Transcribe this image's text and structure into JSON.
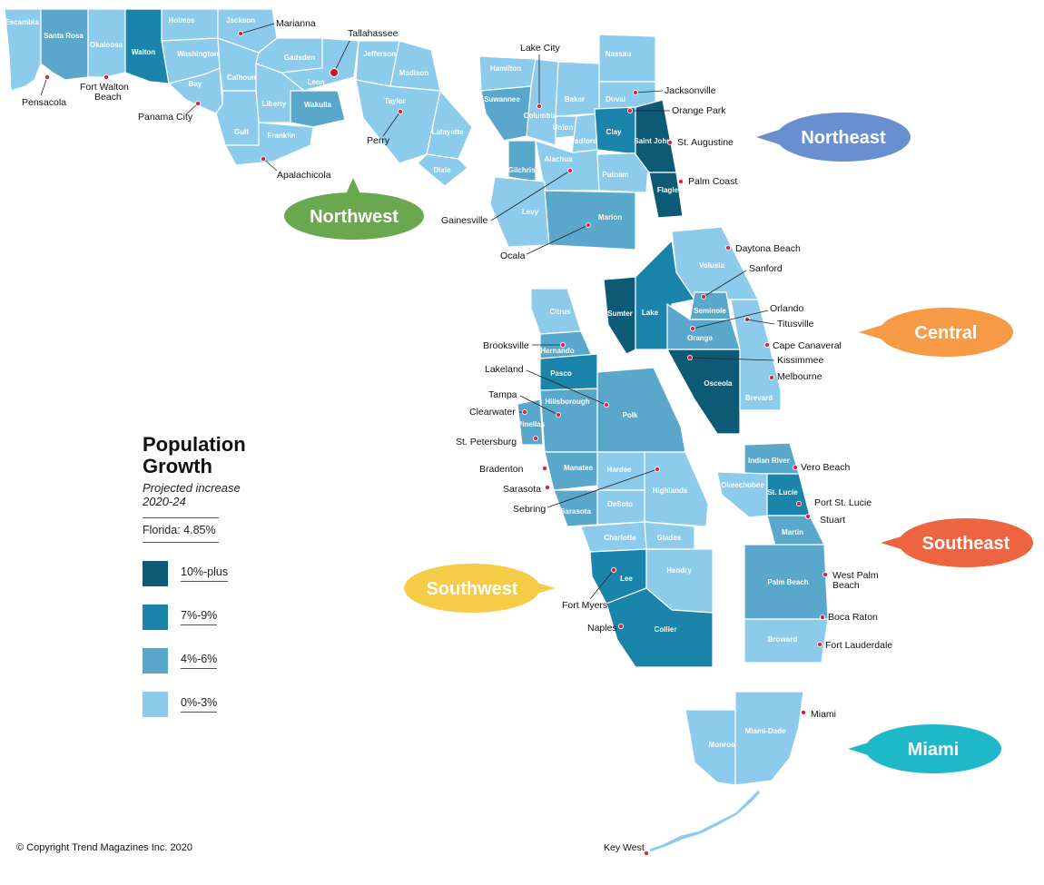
{
  "legend": {
    "title_line1": "Population",
    "title_line2": "Growth",
    "subtitle": "Projected increase 2020-24",
    "total": "Florida: 4.85%",
    "classes": [
      {
        "label": "10%-plus",
        "color": "#0d5a76"
      },
      {
        "label": "7%-9%",
        "color": "#1a84ab"
      },
      {
        "label": "4%-6%",
        "color": "#5aa7cc"
      },
      {
        "label": "0%-3%",
        "color": "#8ccbec"
      }
    ]
  },
  "regions": {
    "northwest": {
      "label": "Northwest",
      "color": "#6aa84f"
    },
    "northeast": {
      "label": "Northeast",
      "color": "#6a8fd1"
    },
    "central": {
      "label": "Central",
      "color": "#f79a45"
    },
    "southwest": {
      "label": "Southwest",
      "color": "#f5cc45"
    },
    "southeast": {
      "label": "Southeast",
      "color": "#ef6440"
    },
    "miami": {
      "label": "Miami",
      "color": "#1fb8c9"
    }
  },
  "counties": {
    "escambia": "Escambia",
    "santa_rosa": "Santa Rosa",
    "okaloosa": "Okaloosa",
    "walton": "Walton",
    "holmes": "Holmes",
    "washington": "Washington",
    "jackson": "Jackson",
    "bay": "Bay",
    "calhoun": "Calhoun",
    "gadsden": "Gadsden",
    "leon": "Leon",
    "jefferson": "Jefferson",
    "madison": "Madison",
    "liberty": "Liberty",
    "wakulla": "Wakulla",
    "gulf": "Gulf",
    "franklin": "Franklin",
    "taylor": "Taylor",
    "lafayette": "Lafayette",
    "dixie": "Dixie",
    "hamilton": "Hamilton",
    "suwannee": "Suwannee",
    "columbia": "Columbia",
    "baker": "Baker",
    "union": "Union",
    "bradford": "Bradford",
    "gilchrist": "Gilchrist",
    "alachua": "Alachua",
    "levy": "Levy",
    "marion": "Marion",
    "nassau": "Nassau",
    "duval": "Duval",
    "clay": "Clay",
    "saint_johns": "Saint Johns",
    "putnam": "Putnam",
    "flagler": "Flagler",
    "volusia": "Volusia",
    "sumter": "Sumter",
    "lake": "Lake",
    "seminole": "Seminole",
    "orange": "Orange",
    "osceola": "Osceola",
    "brevard": "Brevard",
    "citrus": "Citrus",
    "hernando": "Hernando",
    "pasco": "Pasco",
    "pinellas": "Pinellas",
    "hillsborough": "Hillsborough",
    "polk": "Polk",
    "manatee": "Manatee",
    "hardee": "Hardee",
    "highlands": "Highlands",
    "sarasota": "Sarasota",
    "desoto": "DeSoto",
    "charlotte": "Charlotte",
    "glades": "Glades",
    "lee": "Lee",
    "hendry": "Hendry",
    "collier": "Collier",
    "indian_river": "Indian River",
    "okeechobee": "Okeechobee",
    "st_lucie": "St. Lucie",
    "martin": "Martin",
    "palm_beach": "Palm Beach",
    "broward": "Broward",
    "monroe": "Monroe",
    "miami_dade": "Miami-Dade"
  },
  "cities": {
    "marianna": "Marianna",
    "tallahassee": "Tallahassee",
    "pensacola": "Pensacola",
    "fort_walton_1": "Fort Walton",
    "fort_walton_2": "Beach",
    "panama_city": "Panama City",
    "perry": "Perry",
    "apalachicola": "Apalachicola",
    "lake_city": "Lake City",
    "jacksonville": "Jacksonville",
    "orange_park": "Orange Park",
    "st_augustine": "St. Augustine",
    "palm_coast": "Palm Coast",
    "gainesville": "Gainesville",
    "ocala": "Ocala",
    "daytona_beach": "Daytona Beach",
    "sanford": "Sanford",
    "orlando": "Orlando",
    "titusville": "Titusville",
    "cape_canaveral": "Cape Canaveral",
    "kissimmee": "Kissimmee",
    "melbourne": "Melbourne",
    "brooksville": "Brooksville",
    "lakeland": "Lakeland",
    "tampa": "Tampa",
    "clearwater": "Clearwater",
    "st_petersburg": "St. Petersburg",
    "bradenton": "Bradenton",
    "sarasota": "Sarasota",
    "sebring": "Sebring",
    "fort_myers": "Fort Myers",
    "naples": "Naples",
    "vero_beach": "Vero Beach",
    "port_st_lucie": "Port St. Lucie",
    "stuart": "Stuart",
    "west_palm_1": "West Palm",
    "west_palm_2": "Beach",
    "boca_raton": "Boca Raton",
    "fort_lauderdale": "Fort Lauderdale",
    "miami": "Miami",
    "key_west": "Key West"
  },
  "copyright": "Copyright Trend Magazines Inc. 2020"
}
